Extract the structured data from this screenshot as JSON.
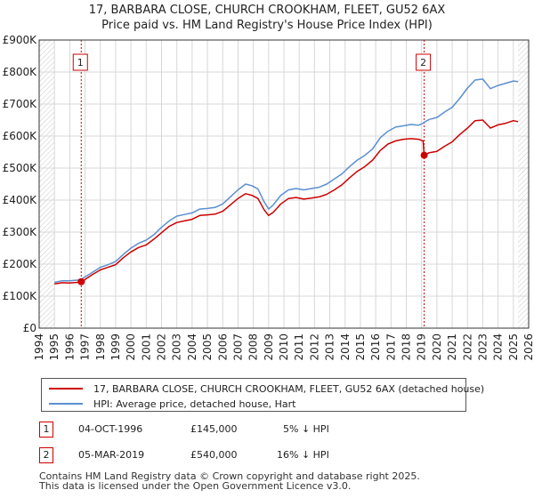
{
  "chart_data": {
    "type": "line",
    "title": "17, BARBARA CLOSE, CHURCH CROOKHAM, FLEET, GU52 6AX",
    "subtitle": "Price paid vs. HM Land Registry's House Price Index (HPI)",
    "xlim": [
      1994,
      2026
    ],
    "ylim": [
      0,
      900000
    ],
    "y_ticks": [
      {
        "value": 0,
        "label": "£0"
      },
      {
        "value": 100000,
        "label": "£100K"
      },
      {
        "value": 200000,
        "label": "£200K"
      },
      {
        "value": 300000,
        "label": "£300K"
      },
      {
        "value": 400000,
        "label": "£400K"
      },
      {
        "value": 500000,
        "label": "£500K"
      },
      {
        "value": 600000,
        "label": "£600K"
      },
      {
        "value": 700000,
        "label": "£700K"
      },
      {
        "value": 800000,
        "label": "£800K"
      },
      {
        "value": 900000,
        "label": "£900K"
      }
    ],
    "x_ticks": [
      "1994",
      "1995",
      "1996",
      "1997",
      "1998",
      "1999",
      "2000",
      "2001",
      "2002",
      "2003",
      "2004",
      "2005",
      "2006",
      "2007",
      "2008",
      "2009",
      "2010",
      "2011",
      "2012",
      "2013",
      "2014",
      "2015",
      "2016",
      "2017",
      "2018",
      "2019",
      "2020",
      "2021",
      "2022",
      "2023",
      "2024",
      "2025",
      "2026"
    ],
    "data_start": 1995.0,
    "data_end": 2025.3,
    "series": [
      {
        "name": "17, BARBARA CLOSE, CHURCH CROOKHAM, FLEET, GU52 6AX (detached house)",
        "color": "#cc0000",
        "points": [
          [
            1995.0,
            138000
          ],
          [
            1995.5,
            142000
          ],
          [
            1996.0,
            141000
          ],
          [
            1996.5,
            143000
          ],
          [
            1996.75,
            145000
          ],
          [
            1997.0,
            152000
          ],
          [
            1997.5,
            168000
          ],
          [
            1998.0,
            182000
          ],
          [
            1998.5,
            190000
          ],
          [
            1999.0,
            198000
          ],
          [
            1999.5,
            220000
          ],
          [
            2000.0,
            238000
          ],
          [
            2000.5,
            252000
          ],
          [
            2001.0,
            260000
          ],
          [
            2001.5,
            278000
          ],
          [
            2002.0,
            298000
          ],
          [
            2002.5,
            318000
          ],
          [
            2003.0,
            330000
          ],
          [
            2003.5,
            335000
          ],
          [
            2004.0,
            340000
          ],
          [
            2004.5,
            352000
          ],
          [
            2005.0,
            354000
          ],
          [
            2005.5,
            356000
          ],
          [
            2006.0,
            365000
          ],
          [
            2006.5,
            385000
          ],
          [
            2007.0,
            405000
          ],
          [
            2007.5,
            420000
          ],
          [
            2007.9,
            415000
          ],
          [
            2008.3,
            405000
          ],
          [
            2008.7,
            370000
          ],
          [
            2009.0,
            352000
          ],
          [
            2009.3,
            362000
          ],
          [
            2009.8,
            388000
          ],
          [
            2010.3,
            405000
          ],
          [
            2010.8,
            408000
          ],
          [
            2011.3,
            403000
          ],
          [
            2011.8,
            406000
          ],
          [
            2012.3,
            410000
          ],
          [
            2012.8,
            418000
          ],
          [
            2013.3,
            432000
          ],
          [
            2013.8,
            448000
          ],
          [
            2014.3,
            470000
          ],
          [
            2014.8,
            490000
          ],
          [
            2015.3,
            505000
          ],
          [
            2015.8,
            525000
          ],
          [
            2016.3,
            555000
          ],
          [
            2016.8,
            575000
          ],
          [
            2017.3,
            585000
          ],
          [
            2017.8,
            590000
          ],
          [
            2018.3,
            592000
          ],
          [
            2018.8,
            590000
          ],
          [
            2019.1,
            585000
          ],
          [
            2019.17,
            540000
          ],
          [
            2019.5,
            548000
          ],
          [
            2020.0,
            552000
          ],
          [
            2020.5,
            568000
          ],
          [
            2021.0,
            582000
          ],
          [
            2021.5,
            605000
          ],
          [
            2022.0,
            625000
          ],
          [
            2022.5,
            648000
          ],
          [
            2023.0,
            650000
          ],
          [
            2023.5,
            625000
          ],
          [
            2024.0,
            635000
          ],
          [
            2024.5,
            640000
          ],
          [
            2025.0,
            648000
          ],
          [
            2025.3,
            645000
          ]
        ]
      },
      {
        "name": "HPI: Average price, detached house, Hart",
        "color": "#5b8fd0",
        "points": [
          [
            1995.0,
            143000
          ],
          [
            1995.5,
            148000
          ],
          [
            1996.0,
            148000
          ],
          [
            1996.5,
            150000
          ],
          [
            1996.75,
            153000
          ],
          [
            1997.0,
            160000
          ],
          [
            1997.5,
            175000
          ],
          [
            1998.0,
            190000
          ],
          [
            1998.5,
            198000
          ],
          [
            1999.0,
            208000
          ],
          [
            1999.5,
            230000
          ],
          [
            2000.0,
            250000
          ],
          [
            2000.5,
            265000
          ],
          [
            2001.0,
            275000
          ],
          [
            2001.5,
            292000
          ],
          [
            2002.0,
            315000
          ],
          [
            2002.5,
            335000
          ],
          [
            2003.0,
            350000
          ],
          [
            2003.5,
            355000
          ],
          [
            2004.0,
            360000
          ],
          [
            2004.5,
            372000
          ],
          [
            2005.0,
            374000
          ],
          [
            2005.5,
            377000
          ],
          [
            2006.0,
            388000
          ],
          [
            2006.5,
            410000
          ],
          [
            2007.0,
            432000
          ],
          [
            2007.5,
            450000
          ],
          [
            2007.9,
            445000
          ],
          [
            2008.3,
            435000
          ],
          [
            2008.7,
            395000
          ],
          [
            2009.0,
            372000
          ],
          [
            2009.3,
            385000
          ],
          [
            2009.8,
            415000
          ],
          [
            2010.3,
            432000
          ],
          [
            2010.8,
            436000
          ],
          [
            2011.3,
            432000
          ],
          [
            2011.8,
            436000
          ],
          [
            2012.3,
            440000
          ],
          [
            2012.8,
            450000
          ],
          [
            2013.3,
            466000
          ],
          [
            2013.8,
            482000
          ],
          [
            2014.3,
            505000
          ],
          [
            2014.8,
            525000
          ],
          [
            2015.3,
            540000
          ],
          [
            2015.8,
            560000
          ],
          [
            2016.3,
            595000
          ],
          [
            2016.8,
            615000
          ],
          [
            2017.3,
            628000
          ],
          [
            2017.8,
            632000
          ],
          [
            2018.3,
            636000
          ],
          [
            2018.8,
            634000
          ],
          [
            2019.1,
            640000
          ],
          [
            2019.17,
            643000
          ],
          [
            2019.5,
            652000
          ],
          [
            2020.0,
            658000
          ],
          [
            2020.5,
            675000
          ],
          [
            2021.0,
            690000
          ],
          [
            2021.5,
            718000
          ],
          [
            2022.0,
            750000
          ],
          [
            2022.5,
            775000
          ],
          [
            2023.0,
            778000
          ],
          [
            2023.5,
            748000
          ],
          [
            2024.0,
            758000
          ],
          [
            2024.5,
            765000
          ],
          [
            2025.0,
            772000
          ],
          [
            2025.3,
            770000
          ]
        ]
      }
    ],
    "sales": [
      {
        "marker": "1",
        "date": "04-OCT-1996",
        "x": 1996.75,
        "price_value": 145000,
        "price": "£145,000",
        "hpi_change": "5% ↓ HPI"
      },
      {
        "marker": "2",
        "date": "05-MAR-2019",
        "x": 2019.17,
        "price_value": 540000,
        "price": "£540,000",
        "hpi_change": "16% ↓ HPI"
      }
    ],
    "colors": {
      "grid": "#d8d8d8",
      "axis": "#333333",
      "hatch": "#bbbbbb",
      "sale_marker": "#cc0000",
      "vline": "#cc0000"
    }
  },
  "footer": {
    "line1": "Contains HM Land Registry data © Crown copyright and database right 2025.",
    "line2": "This data is licensed under the Open Government Licence v3.0."
  }
}
